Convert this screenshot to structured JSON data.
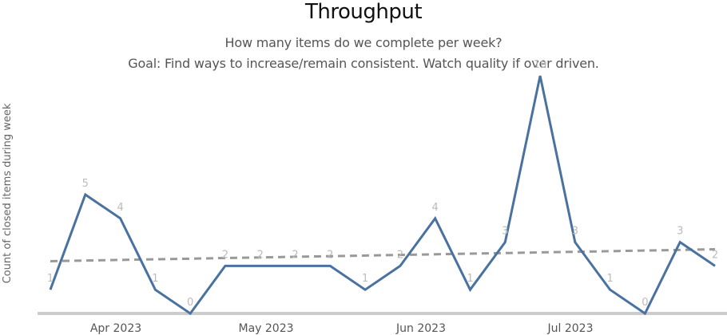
{
  "header": {
    "title": "Throughput",
    "subtitle_line1": "How many items do we complete per week?",
    "subtitle_line2": "Goal: Find ways to increase/remain consistent. Watch quality if over driven."
  },
  "colors": {
    "series": "#4a72a0",
    "trend": "#999999",
    "axis": "#cccccc",
    "data_label": "#bbbbbb"
  },
  "chart_data": {
    "type": "line",
    "title": "Throughput",
    "subtitle": "How many items do we complete per week? Goal: Find ways to increase/remain consistent. Watch quality if over driven.",
    "xlabel": "",
    "ylabel": "Count of closed items during week",
    "x_tick_labels": [
      "Apr 2023",
      "May 2023",
      "Jun 2023",
      "Jul 2023"
    ],
    "series": [
      {
        "name": "Count of closed items during week",
        "values": [
          1,
          5,
          4,
          1,
          0,
          2,
          2,
          2,
          2,
          1,
          2,
          4,
          1,
          3,
          10,
          3,
          1,
          0,
          3,
          2
        ]
      },
      {
        "name": "Trend",
        "style": "dashed",
        "start": 2.2,
        "end": 2.7
      }
    ],
    "ylim": [
      0,
      10
    ],
    "grid": false,
    "legend": "none",
    "data_labels": true
  }
}
